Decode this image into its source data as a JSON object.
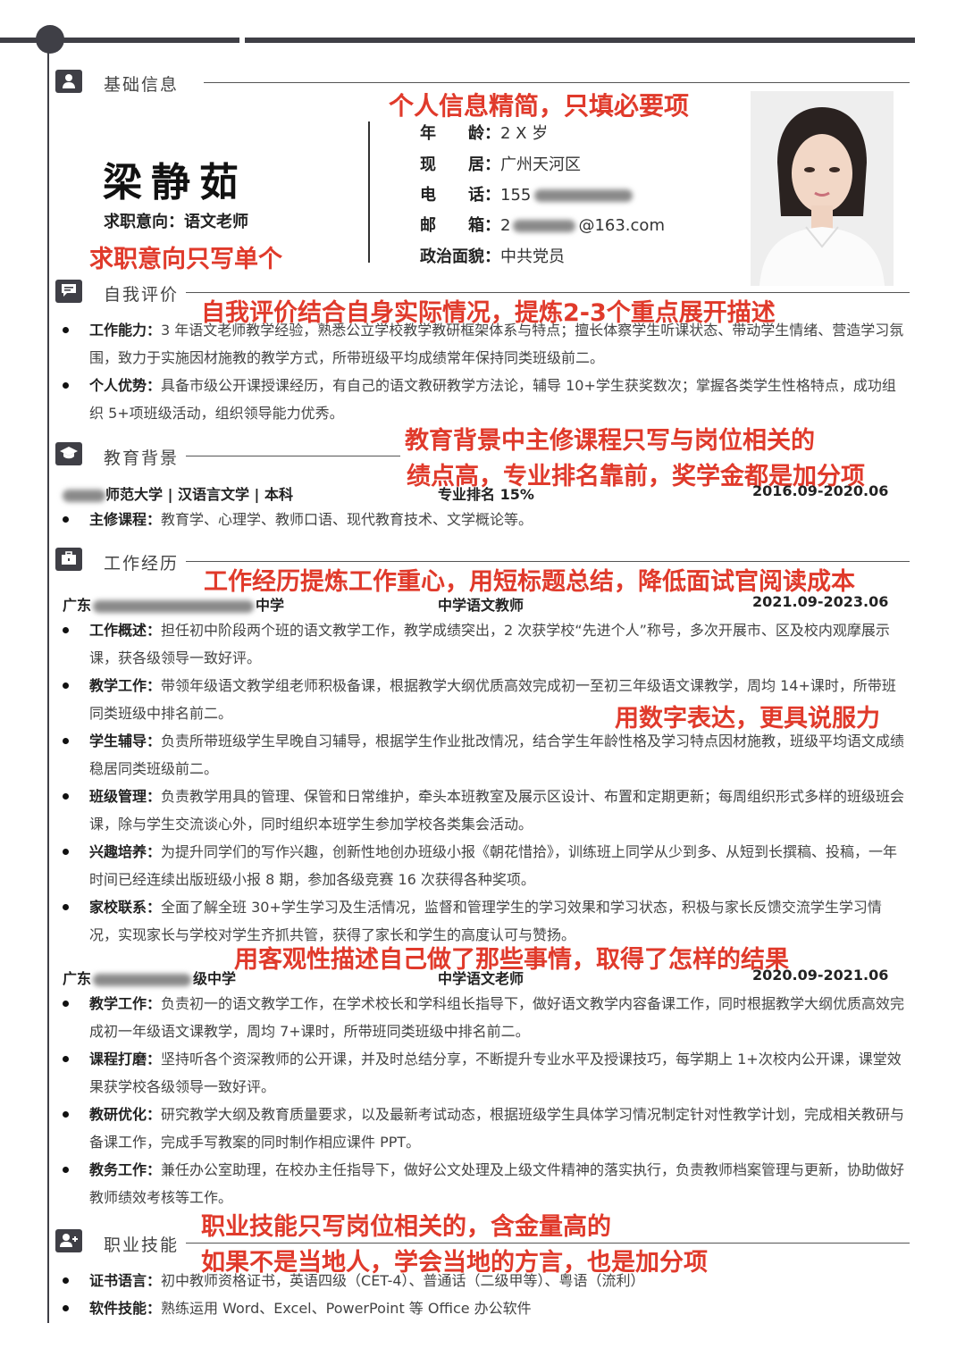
{
  "basic": {
    "section_title": "基础信息",
    "name": "梁静茹",
    "intent": "求职意向：语文老师",
    "age_label": "年　　龄：",
    "age": "2 X 岁",
    "addr_label": "现　　居：",
    "addr": "广州天河区",
    "phone_label": "电　　话：",
    "phone": "155",
    "email_label": "邮　　箱：",
    "email_prefix": "2",
    "email_suffix": "@163.com",
    "political_label": "政治面貌：",
    "political": "中共党员"
  },
  "annotations": {
    "a1": "个人信息精简，只填必要项",
    "a2": "求职意向只写单个",
    "a3": "自我评价结合自身实际情况，提炼2-3个重点展开描述",
    "a4": "教育背景中主修课程只写与岗位相关的",
    "a5": "绩点高，专业排名靠前，奖学金都是加分项",
    "a6": "工作经历提炼工作重心，用短标题总结，降低面试官阅读成本",
    "a7": "用数字表达，更具说服力",
    "a8": "用客观性描述自己做了那些事情，取得了怎样的结果",
    "a9": "职业技能只写岗位相关的，含金量高的",
    "a10": "如果不是当地人，学会当地的方言，也是加分项"
  },
  "self_eval": {
    "section_title": "自我评价",
    "items": [
      {
        "k": "工作能力：",
        "v": "3 年语文老师教学经验，熟悉公立学校教学教研框架体系与特点；擅长体察学生听课状态、带动学生情绪、营造学习氛围，致力于实施因材施教的教学方式，所带班级平均成绩常年保持同类班级前二。"
      },
      {
        "k": "个人优势：",
        "v": "具备市级公开课授课经历，有自己的语文教研教学方法论，辅导 10+学生获奖数次；掌握各类学生性格特点，成功组织 5+项班级活动，组织领导能力优秀。"
      }
    ]
  },
  "education": {
    "section_title": "教育背景",
    "school": "师范大学 | 汉语言文学 | 本科",
    "rank": "专业排名 15%",
    "period": "2016.09-2020.06",
    "items": [
      {
        "k": "主修课程：",
        "v": "教育学、心理学、教师口语、现代教育技术、文学概论等。"
      }
    ]
  },
  "work": {
    "section_title": "工作经历",
    "job1": {
      "org_prefix": "广东",
      "org_suffix": "中学",
      "title": "中学语文教师",
      "period": "2021.09-2023.06",
      "items": [
        {
          "k": "工作概述：",
          "v": "担任初中阶段两个班的语文教学工作，教学成绩突出，2 次获学校“先进个人”称号，多次开展市、区及校内观摩展示课，获各级领导一致好评。"
        },
        {
          "k": "教学工作：",
          "v": "带领年级语文教学组老师积极备课，根据教学大纲优质高效完成初一至初三年级语文课教学，周均 14+课时，所带班同类班级中排名前二。"
        },
        {
          "k": "学生辅导：",
          "v": "负责所带班级学生早晚自习辅导，根据学生作业批改情况，结合学生年龄性格及学习特点因材施教，班级平均语文成绩稳居同类班级前二。"
        },
        {
          "k": "班级管理：",
          "v": "负责教学用具的管理、保管和日常维护，牵头本班教室及展示区设计、布置和定期更新；每周组织形式多样的班级班会课，除与学生交流谈心外，同时组织本班学生参加学校各类集会活动。"
        },
        {
          "k": "兴趣培养：",
          "v": "为提升同学们的写作兴趣，创新性地创办班级小报《朝花惜拾》，训练班上同学从少到多、从短到长撰稿、投稿，一年时间已经连续出版班级小报 8 期，参加各级竞赛 16 次获得各种奖项。"
        },
        {
          "k": "家校联系：",
          "v": "全面了解全班 30+学生学习及生活情况，监督和管理学生的学习效果和学习状态，积极与家长反馈交流学生学习情况，实现家长与学校对学生齐抓共管，获得了家长和学生的高度认可与赞扬。"
        }
      ]
    },
    "job2": {
      "org_prefix": "广东",
      "org_suffix": "级中学",
      "title": "中学语文老师",
      "period": "2020.09-2021.06",
      "items": [
        {
          "k": "教学工作：",
          "v": "负责初一的语文教学工作，在学术校长和学科组长指导下，做好语文教学内容备课工作，同时根据教学大纲优质高效完成初一年级语文课教学，周均 7+课时，所带班同类班级中排名前二。"
        },
        {
          "k": "课程打磨：",
          "v": "坚持听各个资深教师的公开课，并及时总结分享，不断提升专业水平及授课技巧，每学期上 1+次校内公开课，课堂效果获学校各级领导一致好评。"
        },
        {
          "k": "教研优化：",
          "v": "研究教学大纲及教育质量要求，以及最新考试动态，根据班级学生具体学习情况制定针对性教学计划，完成相关教研与备课工作，完成手写教案的同时制作相应课件 PPT。"
        },
        {
          "k": "教务工作：",
          "v": "兼任办公室助理，在校办主任指导下，做好公文处理及上级文件精神的落实执行，负责教师档案管理与更新，协助做好教师绩效考核等工作。"
        }
      ]
    }
  },
  "skills": {
    "section_title": "职业技能",
    "items": [
      {
        "k": "证书语言：",
        "v": "初中教师资格证书，英语四级（CET-4）、普通话（二级甲等）、粤语（流利）"
      },
      {
        "k": "软件技能：",
        "v": "熟练运用 Word、Excel、PowerPoint 等 Office 办公软件"
      }
    ]
  }
}
